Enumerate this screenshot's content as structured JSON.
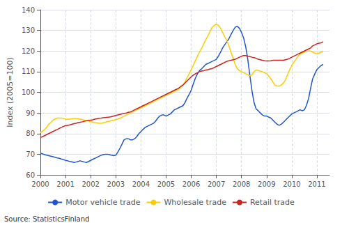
{
  "chart_data": {
    "type": "line",
    "ylabel": "Index (2005=100)",
    "annotations": [
      "Source: StatisticsFinland"
    ],
    "xlim": [
      2000,
      2011.5
    ],
    "xticks": [
      2000,
      2001,
      2002,
      2003,
      2004,
      2005,
      2006,
      2007,
      2008,
      2009,
      2010,
      2011
    ],
    "ylim": [
      60,
      140
    ],
    "yticks": [
      60,
      70,
      80,
      90,
      100,
      110,
      120,
      130,
      140
    ],
    "grid": true,
    "legend": "bottom",
    "x": [
      2000.0,
      2000.08,
      2000.17,
      2000.25,
      2000.33,
      2000.42,
      2000.5,
      2000.58,
      2000.67,
      2000.75,
      2000.83,
      2000.92,
      2001.0,
      2001.08,
      2001.17,
      2001.25,
      2001.33,
      2001.42,
      2001.5,
      2001.58,
      2001.67,
      2001.75,
      2001.83,
      2001.92,
      2002.0,
      2002.08,
      2002.17,
      2002.25,
      2002.33,
      2002.42,
      2002.5,
      2002.58,
      2002.67,
      2002.75,
      2002.83,
      2002.92,
      2003.0,
      2003.08,
      2003.17,
      2003.25,
      2003.33,
      2003.42,
      2003.5,
      2003.58,
      2003.67,
      2003.75,
      2003.83,
      2003.92,
      2004.0,
      2004.08,
      2004.17,
      2004.25,
      2004.33,
      2004.42,
      2004.5,
      2004.58,
      2004.67,
      2004.75,
      2004.83,
      2004.92,
      2005.0,
      2005.08,
      2005.17,
      2005.25,
      2005.33,
      2005.42,
      2005.5,
      2005.58,
      2005.67,
      2005.75,
      2005.83,
      2005.92,
      2006.0,
      2006.08,
      2006.17,
      2006.25,
      2006.33,
      2006.42,
      2006.5,
      2006.58,
      2006.67,
      2006.75,
      2006.83,
      2006.92,
      2007.0,
      2007.08,
      2007.17,
      2007.25,
      2007.33,
      2007.42,
      2007.5,
      2007.58,
      2007.67,
      2007.75,
      2007.83,
      2007.92,
      2008.0,
      2008.08,
      2008.17,
      2008.25,
      2008.33,
      2008.42,
      2008.5,
      2008.58,
      2008.67,
      2008.75,
      2008.83,
      2008.92,
      2009.0,
      2009.08,
      2009.17,
      2009.25,
      2009.33,
      2009.42,
      2009.5,
      2009.58,
      2009.67,
      2009.75,
      2009.83,
      2009.92,
      2010.0,
      2010.08,
      2010.17,
      2010.25,
      2010.33,
      2010.42,
      2010.5,
      2010.58,
      2010.67,
      2010.75,
      2010.83,
      2010.92,
      2011.0,
      2011.08,
      2011.17,
      2011.25
    ],
    "series": [
      {
        "name": "Motor vehicle trade",
        "color": "#2255CC",
        "values": [
          70.5,
          70.2,
          69.8,
          69.5,
          69.3,
          69.0,
          68.8,
          68.5,
          68.2,
          68.0,
          67.7,
          67.4,
          67.0,
          66.8,
          66.5,
          66.3,
          66.0,
          66.2,
          66.5,
          66.8,
          66.5,
          66.2,
          66.0,
          66.5,
          67.0,
          67.5,
          68.0,
          68.5,
          69.0,
          69.5,
          69.8,
          70.0,
          70.0,
          69.8,
          69.5,
          69.3,
          69.5,
          71.0,
          73.0,
          75.0,
          77.0,
          77.5,
          77.5,
          77.0,
          77.0,
          77.5,
          78.5,
          80.0,
          81.0,
          82.0,
          83.0,
          83.5,
          84.0,
          84.5,
          85.0,
          86.0,
          87.5,
          88.5,
          89.0,
          89.0,
          88.5,
          89.0,
          89.5,
          90.5,
          91.5,
          92.0,
          92.5,
          93.0,
          93.5,
          95.0,
          97.0,
          99.0,
          101.0,
          104.0,
          107.0,
          109.0,
          110.5,
          111.5,
          112.5,
          113.5,
          114.0,
          114.5,
          115.0,
          115.5,
          116.0,
          117.5,
          119.5,
          121.5,
          123.0,
          124.5,
          126.0,
          128.0,
          130.0,
          131.5,
          132.0,
          131.0,
          129.0,
          126.5,
          122.0,
          116.0,
          108.5,
          100.5,
          95.0,
          92.0,
          91.0,
          90.0,
          89.0,
          88.5,
          88.5,
          88.0,
          87.5,
          86.5,
          85.5,
          84.5,
          84.0,
          84.5,
          85.5,
          86.5,
          87.5,
          88.5,
          89.5,
          90.0,
          90.5,
          91.0,
          91.5,
          91.0,
          91.5,
          93.5,
          97.0,
          102.0,
          106.5,
          109.0,
          111.0,
          112.0,
          113.0,
          113.5
        ]
      },
      {
        "name": "Wholesale trade",
        "color": "#FFCC00",
        "values": [
          80.5,
          81.0,
          82.0,
          83.0,
          84.5,
          85.5,
          86.5,
          87.0,
          87.5,
          87.5,
          87.5,
          87.3,
          87.0,
          87.0,
          87.0,
          87.2,
          87.3,
          87.3,
          87.2,
          87.0,
          86.8,
          86.5,
          86.3,
          86.0,
          85.8,
          85.5,
          85.3,
          85.2,
          85.0,
          85.0,
          85.2,
          85.5,
          85.8,
          86.0,
          86.3,
          86.5,
          86.8,
          87.0,
          87.5,
          88.0,
          88.5,
          89.0,
          89.5,
          90.0,
          90.5,
          91.0,
          91.5,
          92.0,
          92.5,
          93.0,
          93.5,
          94.0,
          94.5,
          95.0,
          95.5,
          96.0,
          96.5,
          97.0,
          97.5,
          98.0,
          98.5,
          99.0,
          99.5,
          100.0,
          100.5,
          101.0,
          101.5,
          102.5,
          103.5,
          105.0,
          107.0,
          109.0,
          111.0,
          113.0,
          115.5,
          117.5,
          119.5,
          121.5,
          123.5,
          125.5,
          127.5,
          129.5,
          131.5,
          132.5,
          133.0,
          132.5,
          131.0,
          129.0,
          127.0,
          125.0,
          122.5,
          119.5,
          116.5,
          113.5,
          111.5,
          110.5,
          110.0,
          109.5,
          109.0,
          108.5,
          108.0,
          108.5,
          110.0,
          110.8,
          110.5,
          110.3,
          110.0,
          109.5,
          109.0,
          108.0,
          106.5,
          105.0,
          103.5,
          103.0,
          103.0,
          103.5,
          104.5,
          106.0,
          108.5,
          111.0,
          113.0,
          114.5,
          116.0,
          117.5,
          118.5,
          119.0,
          119.5,
          120.0,
          120.0,
          120.0,
          119.5,
          119.0,
          118.5,
          119.0,
          119.5,
          120.0
        ]
      },
      {
        "name": "Retail trade",
        "color": "#CC2222",
        "values": [
          78.0,
          78.5,
          79.0,
          79.5,
          80.0,
          80.5,
          81.0,
          81.5,
          82.0,
          82.5,
          83.0,
          83.5,
          83.8,
          84.0,
          84.2,
          84.5,
          84.8,
          85.0,
          85.3,
          85.5,
          85.7,
          86.0,
          86.2,
          86.4,
          86.5,
          86.7,
          87.0,
          87.2,
          87.4,
          87.5,
          87.7,
          87.8,
          87.9,
          88.0,
          88.2,
          88.5,
          88.8,
          89.0,
          89.3,
          89.5,
          89.8,
          90.0,
          90.3,
          90.5,
          91.0,
          91.5,
          92.0,
          92.5,
          93.0,
          93.5,
          94.0,
          94.5,
          95.0,
          95.5,
          96.0,
          96.5,
          97.0,
          97.5,
          98.0,
          98.5,
          99.0,
          99.5,
          100.0,
          100.5,
          101.0,
          101.5,
          102.0,
          102.8,
          103.5,
          104.5,
          105.5,
          106.5,
          107.5,
          108.3,
          109.0,
          109.5,
          110.0,
          110.3,
          110.5,
          110.8,
          111.0,
          111.3,
          111.5,
          112.0,
          112.5,
          113.0,
          113.5,
          114.0,
          114.5,
          115.0,
          115.3,
          115.5,
          115.8,
          116.0,
          116.5,
          117.0,
          117.5,
          117.8,
          117.8,
          117.5,
          117.3,
          117.0,
          116.8,
          116.5,
          116.0,
          115.8,
          115.5,
          115.3,
          115.2,
          115.2,
          115.3,
          115.5,
          115.5,
          115.5,
          115.5,
          115.5,
          115.5,
          115.8,
          116.0,
          116.5,
          117.0,
          117.5,
          118.0,
          118.5,
          119.0,
          119.5,
          120.0,
          120.5,
          121.0,
          121.5,
          122.5,
          123.0,
          123.5,
          123.8,
          124.0,
          124.5
        ]
      }
    ]
  }
}
